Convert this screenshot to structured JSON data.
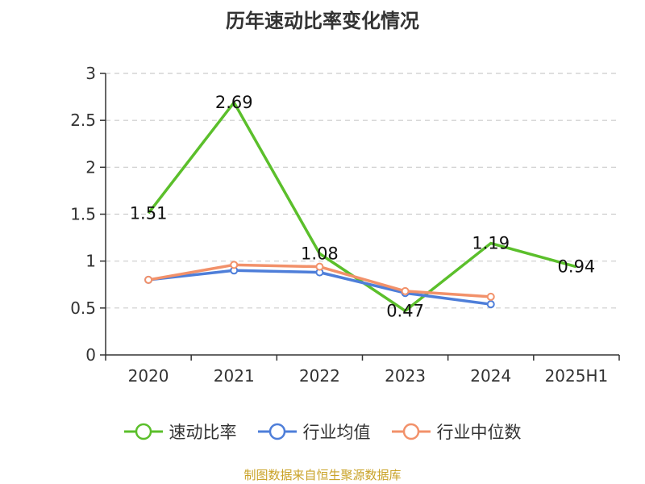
{
  "title": "历年速动比率变化情况",
  "source": "制图数据来自恒生聚源数据库",
  "chart_data": {
    "type": "line",
    "title": "历年速动比率变化情况",
    "categories": [
      "2020",
      "2021",
      "2022",
      "2023",
      "2024",
      "2025H1"
    ],
    "ylim": [
      0,
      3
    ],
    "yticks": [
      "0",
      "0.5",
      "1",
      "1.5",
      "2",
      "2.5",
      "3"
    ],
    "grid": true,
    "legend_position": "bottom",
    "series": [
      {
        "name": "速动比率",
        "color": "#5bbf2b",
        "values": [
          1.51,
          2.69,
          1.08,
          0.47,
          1.19,
          0.94
        ],
        "labels": [
          "1.51",
          "2.69",
          "1.08",
          "0.47",
          "1.19",
          "0.94"
        ]
      },
      {
        "name": "行业均值",
        "color": "#4e7ed9",
        "values": [
          0.8,
          0.9,
          0.88,
          0.66,
          0.54,
          null
        ]
      },
      {
        "name": "行业中位数",
        "color": "#f2916a",
        "values": [
          0.8,
          0.96,
          0.94,
          0.68,
          0.62,
          null
        ]
      }
    ]
  }
}
